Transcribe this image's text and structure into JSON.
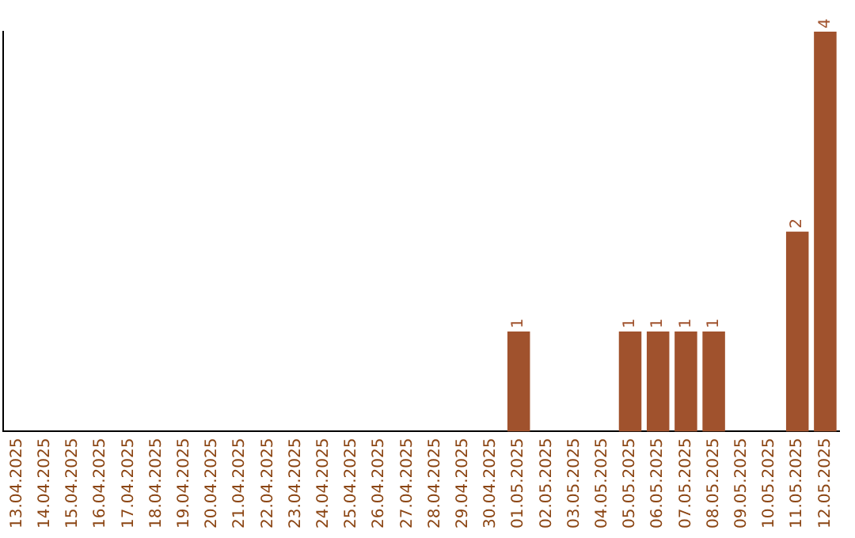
{
  "chart_data": {
    "type": "bar",
    "categories": [
      "13.04.2025",
      "14.04.2025",
      "15.04.2025",
      "16.04.2025",
      "17.04.2025",
      "18.04.2025",
      "19.04.2025",
      "20.04.2025",
      "21.04.2025",
      "22.04.2025",
      "23.04.2025",
      "24.04.2025",
      "25.04.2025",
      "26.04.2025",
      "27.04.2025",
      "28.04.2025",
      "29.04.2025",
      "30.04.2025",
      "01.05.2025",
      "02.05.2025",
      "03.05.2025",
      "04.05.2025",
      "05.05.2025",
      "06.05.2025",
      "07.05.2025",
      "08.05.2025",
      "09.05.2025",
      "10.05.2025",
      "11.05.2025",
      "12.05.2025"
    ],
    "values": [
      null,
      null,
      null,
      null,
      null,
      null,
      null,
      null,
      null,
      null,
      null,
      null,
      null,
      null,
      null,
      null,
      null,
      null,
      1,
      null,
      null,
      null,
      1,
      1,
      1,
      1,
      null,
      null,
      2,
      4
    ],
    "data_labels": true,
    "color": "#a0522d",
    "tick_labels": "x",
    "grid": false,
    "legend": false
  }
}
